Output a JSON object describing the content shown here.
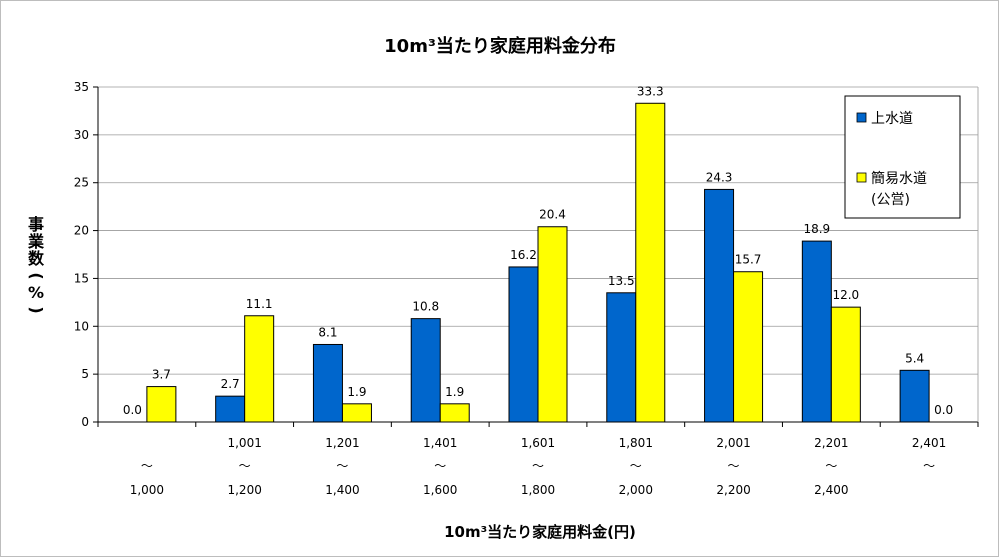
{
  "chart_data": {
    "type": "bar",
    "title": "10m³当たり家庭用料金分布",
    "xlabel": "10m³当たり家庭用料金(円)",
    "ylabel_chars": [
      "事",
      "業",
      "数",
      "(",
      "%",
      ")"
    ],
    "ylim": [
      0,
      35
    ],
    "yticks": [
      0,
      5,
      10,
      15,
      20,
      25,
      30,
      35
    ],
    "grid": true,
    "legend_position": "top-right",
    "categories": [
      {
        "top": "",
        "mid": "～",
        "bottom": "1,000"
      },
      {
        "top": "1,001",
        "mid": "～",
        "bottom": "1,200"
      },
      {
        "top": "1,201",
        "mid": "～",
        "bottom": "1,400"
      },
      {
        "top": "1,401",
        "mid": "～",
        "bottom": "1,600"
      },
      {
        "top": "1,601",
        "mid": "～",
        "bottom": "1,800"
      },
      {
        "top": "1,801",
        "mid": "～",
        "bottom": "2,000"
      },
      {
        "top": "2,001",
        "mid": "～",
        "bottom": "2,200"
      },
      {
        "top": "2,201",
        "mid": "～",
        "bottom": "2,400"
      },
      {
        "top": "2,401",
        "mid": "～",
        "bottom": ""
      }
    ],
    "series": [
      {
        "name": "上水道",
        "color": "#0066cc",
        "values": [
          0.0,
          2.7,
          8.1,
          10.8,
          16.2,
          13.5,
          24.3,
          18.9,
          5.4
        ],
        "labels": [
          "0.0",
          "2.7",
          "8.1",
          "10.8",
          "16.2",
          "13.5",
          "24.3",
          "18.9",
          "5.4"
        ]
      },
      {
        "name": "簡易水道",
        "name_line2": "(公営)",
        "color": "#ffff00",
        "values": [
          3.7,
          11.1,
          1.9,
          1.9,
          20.4,
          33.3,
          15.7,
          12.0,
          0.0
        ],
        "labels": [
          "3.7",
          "11.1",
          "1.9",
          "1.9",
          "20.4",
          "33.3",
          "15.7",
          "12.0",
          "0.0"
        ]
      }
    ]
  }
}
